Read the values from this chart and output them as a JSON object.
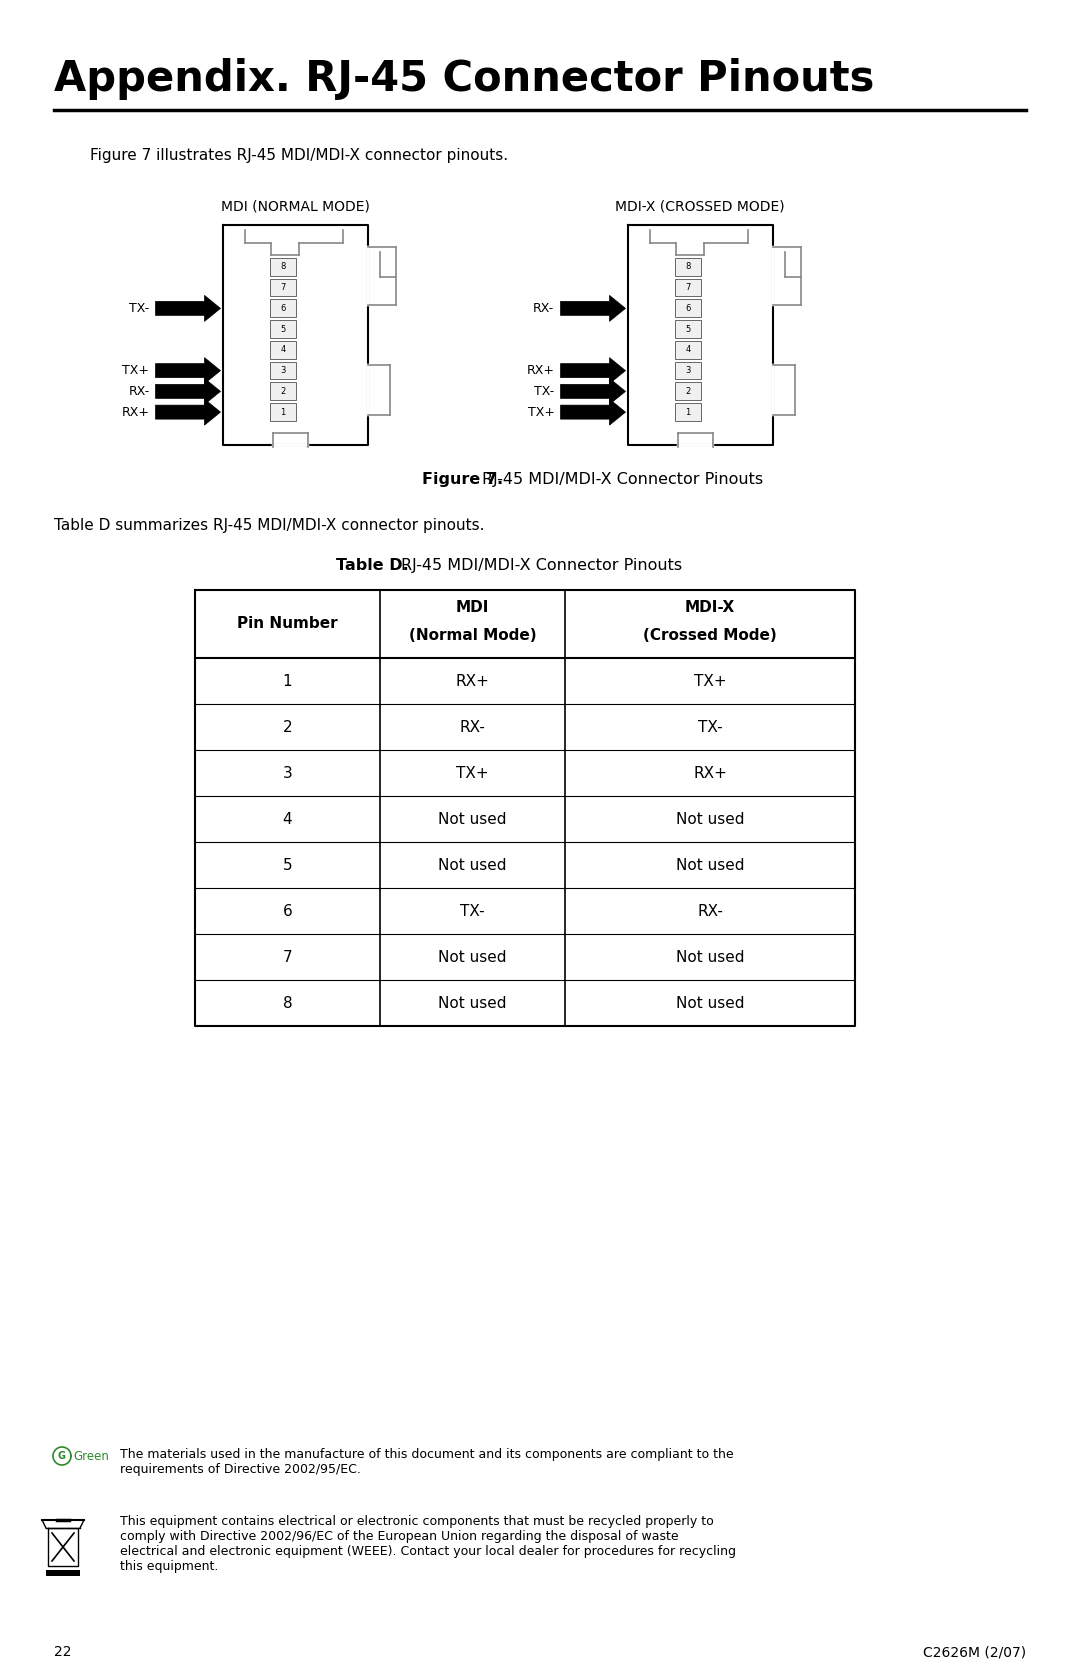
{
  "page_title": "Appendix. RJ-45 Connector Pinouts",
  "intro_text": "Figure 7 illustrates RJ-45 MDI/MDI-X connector pinouts.",
  "figure_caption_bold": "Figure 7.",
  "figure_caption_normal": "  RJ-45 MDI/MDI-X Connector Pinouts",
  "table_caption_bold": "Table D.",
  "table_caption_normal": "  RJ-45 MDI/MDI-X Connector Pinouts",
  "table_summary": "Table D summarizes RJ-45 MDI/MDI-X connector pinouts.",
  "mdi_label": "MDI (NORMAL MODE)",
  "mdix_label": "MDI-X (CROSSED MODE)",
  "mdi_arrows": [
    {
      "label": "TX-",
      "pin": 6
    },
    {
      "label": "TX+",
      "pin": 3
    },
    {
      "label": "RX-",
      "pin": 2
    },
    {
      "label": "RX+",
      "pin": 1
    }
  ],
  "mdix_arrows": [
    {
      "label": "RX-",
      "pin": 6
    },
    {
      "label": "RX+",
      "pin": 3
    },
    {
      "label": "TX-",
      "pin": 2
    },
    {
      "label": "TX+",
      "pin": 1
    }
  ],
  "table_headers_row1": [
    "",
    "MDI",
    "MDI-X"
  ],
  "table_headers_row2": [
    "Pin Number",
    "(Normal Mode)",
    "(Crossed Mode)"
  ],
  "table_rows": [
    [
      "1",
      "RX+",
      "TX+"
    ],
    [
      "2",
      "RX-",
      "TX-"
    ],
    [
      "3",
      "TX+",
      "RX+"
    ],
    [
      "4",
      "Not used",
      "Not used"
    ],
    [
      "5",
      "Not used",
      "Not used"
    ],
    [
      "6",
      "TX-",
      "RX-"
    ],
    [
      "7",
      "Not used",
      "Not used"
    ],
    [
      "8",
      "Not used",
      "Not used"
    ]
  ],
  "green_text": "ⓆGreen",
  "green_color": "#2d8a2d",
  "footer_green_text": "The materials used in the manufacture of this document and its components are compliant to the\nrequirements of Directive 2002/95/EC.",
  "footer_weee_text": "This equipment contains electrical or electronic components that must be recycled properly to\ncomply with Directive 2002/96/EC of the European Union regarding the disposal of waste\nelectrical and electronic equipment (WEEE). Contact your local dealer for procedures for recycling\nthis equipment.",
  "page_num": "22",
  "doc_id": "C2626M (2/07)",
  "bg_color": "#ffffff",
  "text_color": "#000000",
  "line_color": "#000000"
}
